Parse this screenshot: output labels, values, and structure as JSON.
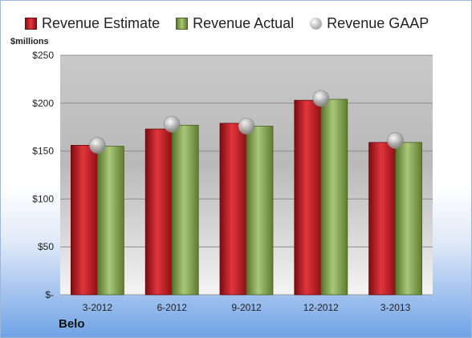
{
  "chart_data": {
    "type": "bar",
    "categories": [
      "3-2012",
      "6-2012",
      "9-2012",
      "12-2012",
      "3-2013"
    ],
    "series": [
      {
        "name": "Revenue Estimate",
        "values": [
          156,
          173,
          179,
          203,
          159
        ]
      },
      {
        "name": "Revenue Actual",
        "values": [
          155,
          177,
          176,
          204,
          159
        ]
      },
      {
        "name": "Revenue GAAP",
        "values": [
          156,
          178,
          176,
          205,
          161
        ]
      }
    ],
    "ylabel": "$millions",
    "ylim": [
      0,
      250
    ],
    "yticks": [
      0,
      50,
      100,
      150,
      200,
      250
    ],
    "ytick_labels": [
      "$-",
      "$50",
      "$100",
      "$150",
      "$200",
      "$250"
    ],
    "grid": true,
    "legend": "top"
  },
  "colors": {
    "estimate": "#c8252b",
    "actual": "#8aab55",
    "gaap": "#b0b0b0"
  },
  "company": "Belo"
}
